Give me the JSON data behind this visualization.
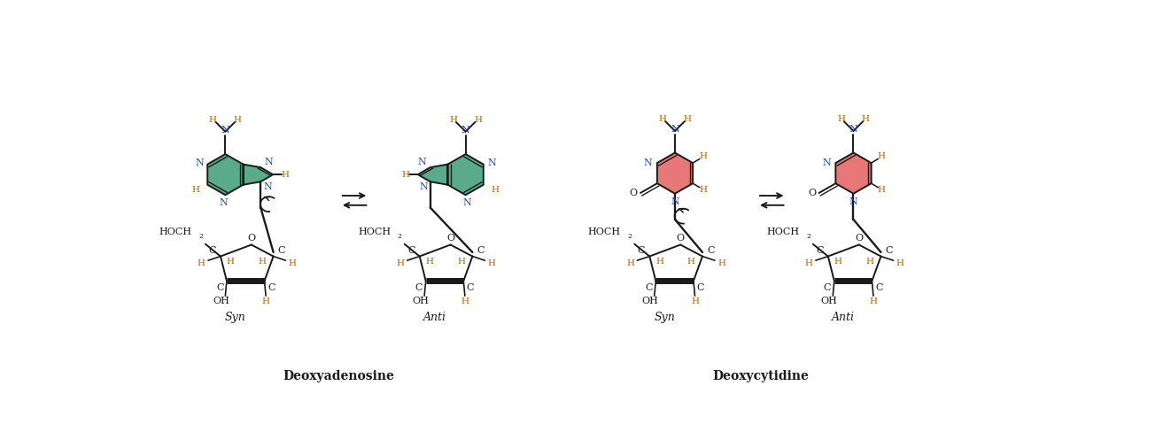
{
  "fig_width": 13.22,
  "fig_height": 4.88,
  "bg_color": "#ffffff",
  "green_color": "#5aaa8c",
  "pink_color": "#e87878",
  "dark_color": "#1a1a1a",
  "blue_color": "#2244aa",
  "orange_color": "#bb6600",
  "label_name1": "Deoxyadenosine",
  "label_name2": "Deoxycytidine",
  "label_syn": "Syn",
  "label_anti": "Anti"
}
